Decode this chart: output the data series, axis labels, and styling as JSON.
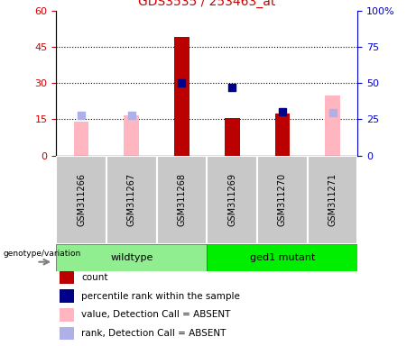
{
  "title": "GDS3535 / 253463_at",
  "samples": [
    "GSM311266",
    "GSM311267",
    "GSM311268",
    "GSM311269",
    "GSM311270",
    "GSM311271"
  ],
  "count_bars": {
    "values": [
      null,
      null,
      49.0,
      15.5,
      17.5,
      null
    ],
    "color": "#bb0000"
  },
  "absent_value_bars": {
    "values": [
      14.0,
      16.5,
      null,
      null,
      null,
      25.0
    ],
    "color": "#ffb6c1"
  },
  "percentile_rank_squares": {
    "values": [
      null,
      null,
      50.0,
      47.0,
      30.0,
      null
    ],
    "color": "#00008b"
  },
  "absent_rank_squares": {
    "values": [
      28.0,
      28.0,
      null,
      null,
      null,
      29.5
    ],
    "color": "#b0b0e8"
  },
  "left_ylim": [
    0,
    60
  ],
  "left_yticks": [
    0,
    15,
    30,
    45,
    60
  ],
  "right_ylim": [
    0,
    100
  ],
  "right_yticks": [
    0,
    25,
    50,
    75,
    100
  ],
  "left_tick_color": "#cc0000",
  "right_tick_color": "#0000cc",
  "title_color": "#cc0000",
  "grid_lines": [
    15,
    30,
    45
  ],
  "wildtype_color": "#90ee90",
  "mutant_color": "#00ee00",
  "label_bg_color": "#c8c8c8",
  "legend": [
    {
      "label": "count",
      "color": "#bb0000"
    },
    {
      "label": "percentile rank within the sample",
      "color": "#00008b"
    },
    {
      "label": "value, Detection Call = ABSENT",
      "color": "#ffb6c1"
    },
    {
      "label": "rank, Detection Call = ABSENT",
      "color": "#b0b0e8"
    }
  ]
}
